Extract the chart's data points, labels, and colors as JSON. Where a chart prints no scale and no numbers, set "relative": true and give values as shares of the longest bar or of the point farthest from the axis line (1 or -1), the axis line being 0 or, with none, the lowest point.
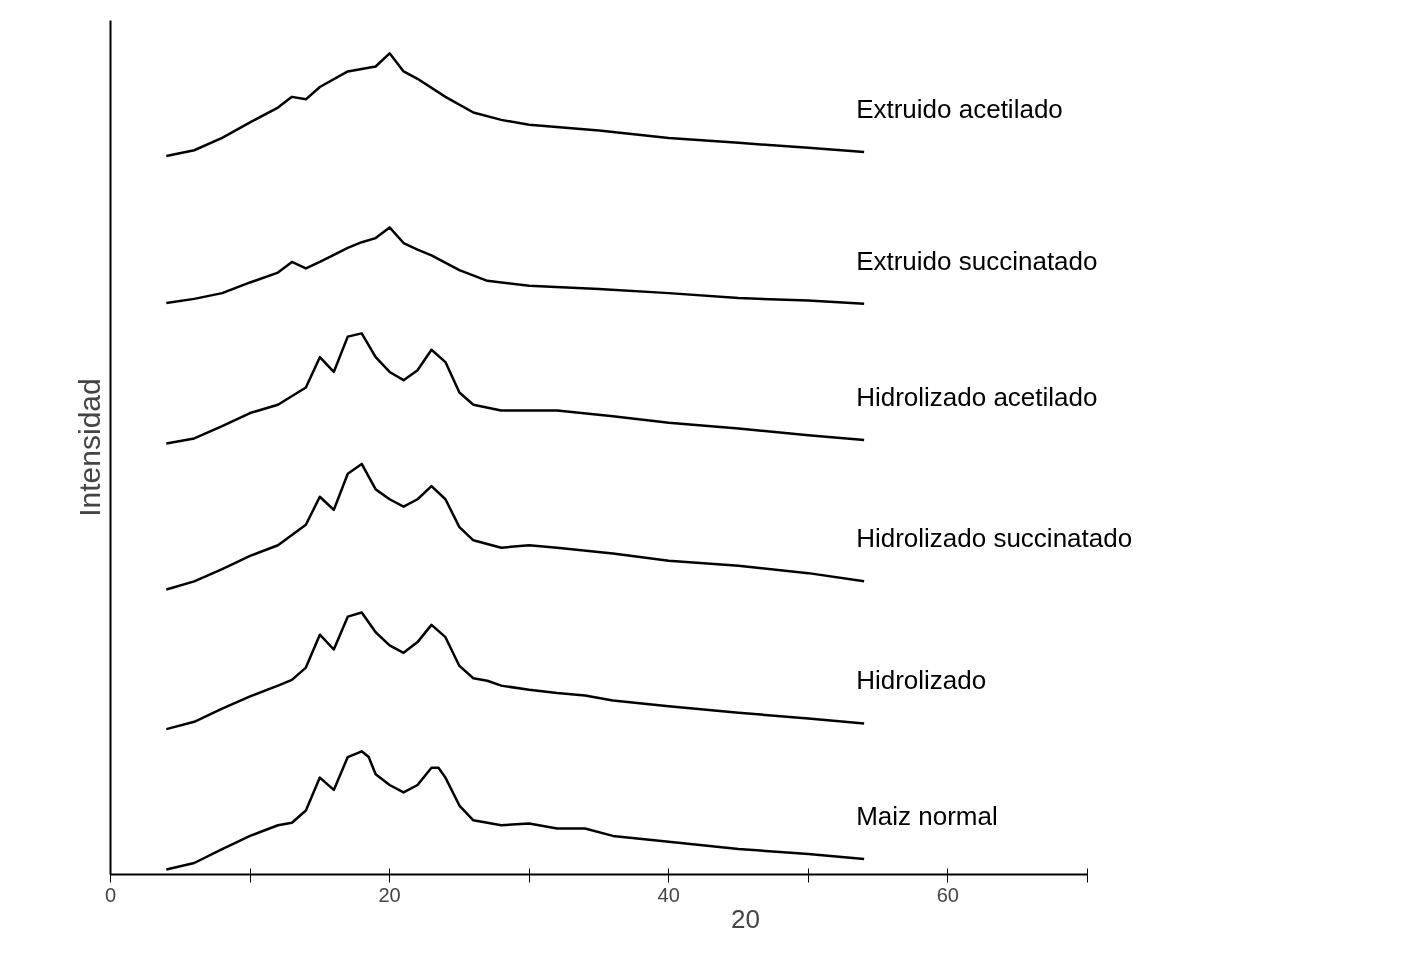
{
  "chart_data": {
    "type": "line",
    "relative": true,
    "xlabel": "20",
    "ylabel": "Intensidad",
    "xlim": [
      0,
      70
    ],
    "xticks": [
      0,
      {
        "value": 10,
        "label": null
      },
      20,
      {
        "value": 30,
        "label": null
      },
      40,
      {
        "value": 50,
        "label": null
      },
      60,
      {
        "value": 70,
        "label": null
      }
    ],
    "grid": false,
    "marker": "none",
    "line_style": "solid",
    "series": [
      {
        "name": "Maiz normal",
        "color": "#000000",
        "x": [
          4,
          6,
          8,
          10,
          12,
          13,
          14,
          15,
          16,
          17,
          18,
          18.5,
          19,
          20,
          21,
          22,
          23,
          23.5,
          24,
          25,
          26,
          28,
          30,
          32,
          34,
          36,
          40,
          45,
          50,
          54
        ],
        "values": [
          0.006,
          0.014,
          0.031,
          0.047,
          0.06,
          0.063,
          0.078,
          0.118,
          0.103,
          0.143,
          0.15,
          0.143,
          0.122,
          0.109,
          0.1,
          0.109,
          0.13,
          0.13,
          0.118,
          0.084,
          0.066,
          0.06,
          0.062,
          0.056,
          0.056,
          0.047,
          0.04,
          0.031,
          0.025,
          0.019
        ]
      },
      {
        "name": "Hidrolizado",
        "color": "#000000",
        "x": [
          4,
          6,
          8,
          10,
          12,
          13,
          14,
          15,
          16,
          17,
          18,
          19,
          20,
          21,
          22,
          23,
          24,
          25,
          26,
          27,
          28,
          30,
          32,
          34,
          36,
          40,
          45,
          50,
          54
        ],
        "values": [
          0.177,
          0.186,
          0.202,
          0.217,
          0.23,
          0.237,
          0.252,
          0.292,
          0.274,
          0.314,
          0.319,
          0.295,
          0.279,
          0.27,
          0.283,
          0.304,
          0.289,
          0.254,
          0.239,
          0.236,
          0.23,
          0.225,
          0.221,
          0.218,
          0.212,
          0.205,
          0.197,
          0.19,
          0.184
        ]
      },
      {
        "name": "Hidrolizado succinatado",
        "color": "#000000",
        "x": [
          4,
          6,
          8,
          10,
          12,
          14,
          15,
          16,
          17,
          18,
          19,
          20,
          21,
          22,
          23,
          24,
          25,
          26,
          28,
          30,
          32,
          36,
          40,
          45,
          50,
          54
        ],
        "values": [
          0.347,
          0.357,
          0.372,
          0.388,
          0.401,
          0.426,
          0.46,
          0.444,
          0.488,
          0.5,
          0.469,
          0.457,
          0.448,
          0.457,
          0.473,
          0.457,
          0.423,
          0.407,
          0.398,
          0.401,
          0.398,
          0.391,
          0.382,
          0.376,
          0.367,
          0.357
        ]
      },
      {
        "name": "Hidrolizado acetilado",
        "color": "#000000",
        "x": [
          4,
          6,
          8,
          10,
          12,
          14,
          15,
          16,
          17,
          18,
          19,
          20,
          21,
          22,
          23,
          24,
          25,
          26,
          28,
          30,
          32,
          36,
          40,
          45,
          50,
          54
        ],
        "values": [
          0.525,
          0.531,
          0.546,
          0.562,
          0.572,
          0.593,
          0.63,
          0.612,
          0.655,
          0.659,
          0.63,
          0.612,
          0.602,
          0.614,
          0.639,
          0.624,
          0.587,
          0.572,
          0.565,
          0.565,
          0.565,
          0.558,
          0.55,
          0.543,
          0.535,
          0.529
        ]
      },
      {
        "name": "Extruido succinatado",
        "color": "#000000",
        "x": [
          4,
          6,
          8,
          10,
          12,
          13,
          14,
          15,
          17,
          18,
          19,
          20,
          21,
          22,
          23,
          25,
          27,
          30,
          35,
          40,
          45,
          50,
          54
        ],
        "values": [
          0.696,
          0.701,
          0.708,
          0.721,
          0.733,
          0.746,
          0.738,
          0.746,
          0.763,
          0.77,
          0.775,
          0.788,
          0.769,
          0.761,
          0.754,
          0.736,
          0.723,
          0.717,
          0.713,
          0.708,
          0.702,
          0.699,
          0.695
        ]
      },
      {
        "name": "Extruido acetilado",
        "color": "#000000",
        "x": [
          4,
          6,
          8,
          10,
          12,
          13,
          14,
          15,
          17,
          18,
          19,
          20,
          21,
          22,
          24,
          26,
          28,
          30,
          35,
          40,
          45,
          50,
          54
        ],
        "values": [
          0.875,
          0.882,
          0.897,
          0.916,
          0.934,
          0.947,
          0.944,
          0.959,
          0.978,
          0.981,
          0.984,
          1.0,
          0.978,
          0.969,
          0.947,
          0.928,
          0.919,
          0.913,
          0.906,
          0.897,
          0.891,
          0.885,
          0.88
        ]
      }
    ]
  }
}
